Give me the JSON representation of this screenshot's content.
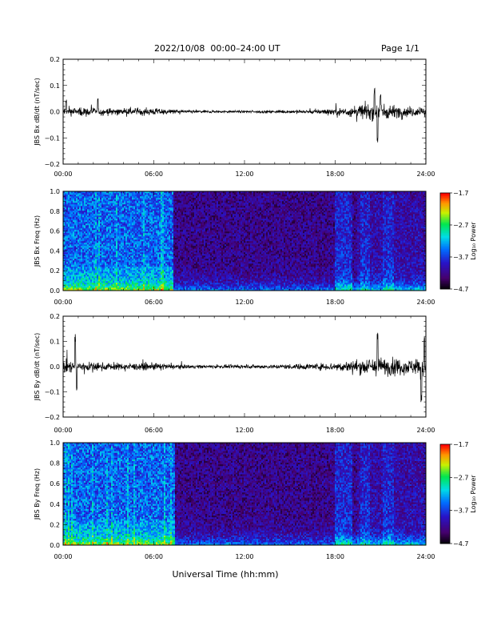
{
  "header": {
    "title": "2022/10/08  00:00–24:00 UT",
    "page": "Page 1/1"
  },
  "xlabel": "Universal Time (hh:mm)",
  "chart_data": [
    {
      "type": "line",
      "ylabel": "JBS Bx dB/dt (nT/sec)",
      "xlim": [
        0,
        24
      ],
      "ylim": [
        -0.2,
        0.2
      ],
      "yticks": [
        0.2,
        0.1,
        0.0,
        -0.1,
        -0.2
      ],
      "yticklabels": [
        "0.2",
        "0.1",
        "0.0",
        "−0.1",
        "−0.2"
      ],
      "xticks": [
        0,
        6,
        12,
        18,
        24
      ],
      "xticklabels": [
        "00:00",
        "06:00",
        "12:00",
        "18:00",
        "24:00"
      ],
      "envelope_hours": [
        0,
        1,
        2,
        3,
        4,
        5,
        6,
        7,
        8,
        9,
        10,
        11,
        12,
        13,
        14,
        15,
        16,
        17,
        18,
        19,
        20,
        21,
        22,
        23,
        24
      ],
      "envelope_amplitude": [
        0.03,
        0.025,
        0.022,
        0.02,
        0.02,
        0.02,
        0.02,
        0.015,
        0.01,
        0.008,
        0.008,
        0.007,
        0.007,
        0.008,
        0.008,
        0.01,
        0.012,
        0.015,
        0.02,
        0.03,
        0.045,
        0.05,
        0.035,
        0.028,
        0.028
      ],
      "events": [
        [
          20.6,
          0.09
        ],
        [
          20.8,
          -0.13
        ],
        [
          21.0,
          0.08
        ],
        [
          2.3,
          0.05
        ],
        [
          0.2,
          0.05
        ]
      ]
    },
    {
      "type": "heatmap",
      "ylabel": "JBS Bx Freq (Hz)",
      "xlim": [
        0,
        24
      ],
      "ylim": [
        0.0,
        1.0
      ],
      "yticks": [
        1.0,
        0.8,
        0.6,
        0.4,
        0.2,
        0.0
      ],
      "yticklabels": [
        "1.0",
        "0.8",
        "0.6",
        "0.4",
        "0.2",
        "0.0"
      ],
      "xticks": [
        0,
        6,
        12,
        18,
        24
      ],
      "xticklabels": [
        "00:00",
        "06:00",
        "12:00",
        "18:00",
        "24:00"
      ],
      "colorbar": {
        "label": "Log₁₀ Power",
        "range": [
          -4.7,
          -1.7
        ],
        "ticklabels": [
          "−1.7",
          "−2.7",
          "−3.7",
          "−4.7"
        ]
      },
      "quiet_start_hour": 7.3,
      "active_hours": [
        18.3,
        18.8,
        20.0,
        21.5
      ]
    },
    {
      "type": "line",
      "ylabel": "JBS By dB/dt (nT/sec)",
      "xlim": [
        0,
        24
      ],
      "ylim": [
        -0.2,
        0.2
      ],
      "yticks": [
        0.2,
        0.1,
        0.0,
        -0.1,
        -0.2
      ],
      "yticklabels": [
        "0.2",
        "0.1",
        "0.0",
        "−0.1",
        "−0.2"
      ],
      "xticks": [
        0,
        6,
        12,
        18,
        24
      ],
      "xticklabels": [
        "00:00",
        "06:00",
        "12:00",
        "18:00",
        "24:00"
      ],
      "envelope_hours": [
        0,
        1,
        2,
        3,
        4,
        5,
        6,
        7,
        8,
        9,
        10,
        11,
        12,
        13,
        14,
        15,
        16,
        17,
        18,
        19,
        20,
        21,
        22,
        23,
        24
      ],
      "envelope_amplitude": [
        0.04,
        0.035,
        0.025,
        0.022,
        0.02,
        0.02,
        0.022,
        0.015,
        0.012,
        0.01,
        0.01,
        0.01,
        0.01,
        0.012,
        0.012,
        0.015,
        0.018,
        0.02,
        0.025,
        0.035,
        0.05,
        0.055,
        0.05,
        0.045,
        0.05
      ],
      "events": [
        [
          0.8,
          0.13
        ],
        [
          0.9,
          -0.1
        ],
        [
          20.8,
          0.15
        ],
        [
          23.7,
          -0.15
        ],
        [
          23.9,
          0.12
        ]
      ]
    },
    {
      "type": "heatmap",
      "ylabel": "JBS By Freq (Hz)",
      "xlim": [
        0,
        24
      ],
      "ylim": [
        0.0,
        1.0
      ],
      "yticks": [
        1.0,
        0.8,
        0.6,
        0.4,
        0.2,
        0.0
      ],
      "yticklabels": [
        "1.0",
        "0.8",
        "0.6",
        "0.4",
        "0.2",
        "0.0"
      ],
      "xticks": [
        0,
        6,
        12,
        18,
        24
      ],
      "xticklabels": [
        "00:00",
        "06:00",
        "12:00",
        "18:00",
        "24:00"
      ],
      "colorbar": {
        "label": "Log₁₀ Power",
        "range": [
          -4.7,
          -1.7
        ],
        "ticklabels": [
          "−1.7",
          "−2.7",
          "−3.7",
          "−4.7"
        ]
      },
      "quiet_start_hour": 7.4,
      "active_hours": [
        18.3,
        18.8,
        20.0,
        21.5
      ]
    }
  ]
}
